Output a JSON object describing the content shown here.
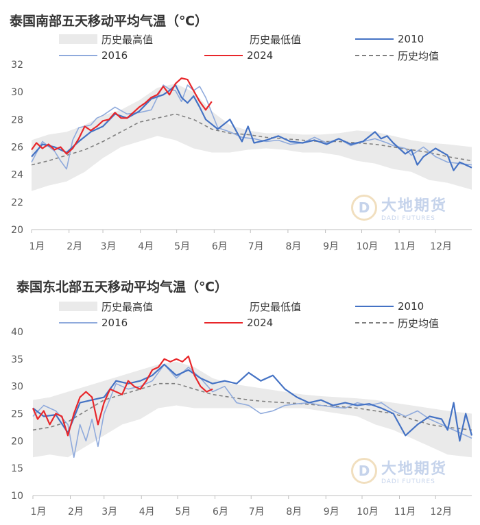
{
  "chart_data": [
    {
      "type": "line",
      "title": "泰国南部五天移动平均气温（℃）",
      "x_categories": [
        "1月",
        "2月",
        "3月",
        "4月",
        "5月",
        "6月",
        "7月",
        "8月",
        "9月",
        "10月",
        "11月",
        "12月"
      ],
      "ylim": [
        20,
        32
      ],
      "yticks": [
        20,
        22,
        24,
        26,
        28,
        30,
        32
      ],
      "grid": false,
      "legend": [
        "历史最高值",
        "历史最低值",
        "2010",
        "2016",
        "2024",
        "历史均值"
      ],
      "x_unit": "day of year",
      "series": [
        {
          "name": "历史最高值",
          "x": [
            1,
            15,
            30,
            45,
            60,
            75,
            90,
            105,
            120,
            135,
            150,
            165,
            180,
            195,
            210,
            225,
            240,
            255,
            270,
            285,
            300,
            315,
            330,
            345,
            365
          ],
          "values": [
            26.5,
            26.9,
            27.1,
            27.6,
            28.3,
            28.7,
            29.4,
            30.3,
            30.6,
            30.0,
            28.6,
            27.6,
            27.2,
            27.0,
            27.0,
            26.9,
            26.9,
            27.0,
            27.2,
            27.1,
            26.8,
            26.5,
            26.3,
            26.2,
            26.0
          ]
        },
        {
          "name": "历史最低值",
          "x": [
            1,
            15,
            30,
            45,
            60,
            75,
            90,
            105,
            120,
            135,
            150,
            165,
            180,
            195,
            210,
            225,
            240,
            255,
            270,
            285,
            300,
            315,
            330,
            345,
            365
          ],
          "values": [
            22.8,
            23.2,
            23.5,
            24.2,
            25.2,
            26.0,
            26.4,
            26.8,
            26.5,
            25.9,
            25.6,
            25.6,
            25.8,
            25.9,
            25.8,
            25.6,
            25.6,
            25.4,
            25.0,
            24.8,
            24.4,
            24.2,
            23.6,
            23.4,
            22.9
          ]
        },
        {
          "name": "历史均值",
          "x": [
            1,
            15,
            30,
            45,
            60,
            75,
            90,
            105,
            120,
            135,
            150,
            165,
            180,
            195,
            210,
            225,
            240,
            255,
            270,
            285,
            300,
            315,
            330,
            345,
            365
          ],
          "values": [
            24.7,
            25.0,
            25.4,
            25.8,
            26.4,
            27.1,
            27.8,
            28.1,
            28.4,
            28.0,
            27.3,
            27.0,
            26.9,
            26.7,
            26.6,
            26.5,
            26.4,
            26.4,
            26.3,
            26.2,
            26.0,
            25.8,
            25.6,
            25.3,
            25.0
          ]
        },
        {
          "name": "2010",
          "x": [
            1,
            10,
            20,
            30,
            40,
            50,
            60,
            70,
            80,
            90,
            100,
            110,
            115,
            120,
            125,
            130,
            135,
            140,
            145,
            155,
            165,
            175,
            180,
            185,
            195,
            205,
            215,
            225,
            235,
            245,
            255,
            265,
            275,
            285,
            290,
            295,
            300,
            310,
            315,
            320,
            325,
            335,
            345,
            350,
            355,
            360,
            365
          ],
          "values": [
            25.3,
            26.2,
            26.0,
            25.6,
            26.4,
            27.1,
            27.5,
            28.4,
            28.1,
            28.6,
            29.5,
            29.8,
            30.1,
            30.5,
            29.6,
            29.2,
            29.7,
            28.9,
            28.0,
            27.3,
            28.0,
            26.4,
            27.5,
            26.3,
            26.5,
            26.8,
            26.4,
            26.3,
            26.5,
            26.2,
            26.6,
            26.2,
            26.4,
            27.1,
            26.6,
            26.8,
            26.3,
            25.5,
            25.8,
            24.7,
            25.3,
            25.9,
            25.4,
            24.3,
            24.9,
            24.7,
            24.5
          ]
        },
        {
          "name": "2016",
          "x": [
            1,
            10,
            20,
            25,
            30,
            35,
            40,
            50,
            55,
            60,
            70,
            80,
            90,
            100,
            110,
            115,
            120,
            125,
            130,
            135,
            140,
            145,
            155,
            165,
            175,
            185,
            195,
            205,
            215,
            225,
            235,
            245,
            255,
            265,
            275,
            285,
            295,
            300,
            310,
            315,
            325,
            335,
            345,
            355,
            365
          ],
          "values": [
            24.9,
            26.4,
            25.7,
            25.0,
            24.4,
            26.5,
            27.4,
            27.6,
            28.1,
            28.3,
            28.9,
            28.4,
            28.5,
            28.7,
            30.5,
            30.2,
            30.1,
            29.3,
            30.5,
            30.1,
            30.4,
            29.6,
            27.4,
            27.1,
            26.7,
            26.6,
            26.4,
            26.5,
            26.2,
            26.3,
            26.7,
            26.3,
            26.6,
            26.1,
            26.4,
            26.6,
            26.3,
            26.1,
            25.9,
            25.4,
            26.0,
            25.3,
            24.9,
            24.8,
            24.7
          ]
        },
        {
          "name": "2024",
          "x": [
            1,
            5,
            10,
            15,
            20,
            25,
            30,
            35,
            40,
            45,
            50,
            55,
            60,
            65,
            70,
            75,
            80,
            85,
            90,
            95,
            100,
            105,
            110,
            115,
            120,
            125,
            130,
            135,
            140,
            145,
            150
          ],
          "values": [
            25.8,
            26.3,
            25.9,
            26.2,
            25.8,
            26.0,
            25.5,
            25.9,
            26.6,
            27.5,
            27.2,
            27.5,
            27.9,
            28.0,
            28.5,
            28.1,
            28.1,
            28.5,
            28.9,
            29.2,
            29.6,
            29.8,
            30.4,
            29.8,
            30.6,
            31.0,
            30.9,
            30.1,
            29.3,
            28.7,
            29.3
          ]
        }
      ]
    },
    {
      "type": "line",
      "title": "泰国东北部五天移动平均气温（℃）",
      "x_categories": [
        "1月",
        "2月",
        "3月",
        "4月",
        "5月",
        "6月",
        "7月",
        "8月",
        "9月",
        "10月",
        "11月",
        "12月"
      ],
      "ylim": [
        10,
        40
      ],
      "yticks": [
        10,
        15,
        20,
        25,
        30,
        35,
        40
      ],
      "grid": false,
      "legend": [
        "历史最高值",
        "历史最低值",
        "2010",
        "2016",
        "2024",
        "历史均值"
      ],
      "x_unit": "day of year",
      "series": [
        {
          "name": "历史最高值",
          "x": [
            1,
            15,
            30,
            45,
            60,
            75,
            90,
            105,
            120,
            135,
            150,
            165,
            180,
            195,
            210,
            225,
            240,
            255,
            270,
            285,
            300,
            315,
            330,
            345,
            365
          ],
          "values": [
            27.5,
            28.0,
            29.0,
            30.0,
            31.0,
            32.0,
            33.0,
            34.0,
            34.5,
            33.5,
            31.5,
            30.5,
            30.0,
            29.5,
            29.0,
            28.5,
            28.2,
            28.0,
            27.8,
            27.5,
            27.0,
            26.5,
            26.0,
            25.5,
            25.0
          ]
        },
        {
          "name": "历史最低值",
          "x": [
            1,
            15,
            30,
            45,
            60,
            75,
            90,
            105,
            120,
            135,
            150,
            165,
            180,
            195,
            210,
            225,
            240,
            255,
            270,
            285,
            300,
            315,
            330,
            345,
            365
          ],
          "values": [
            17.0,
            17.5,
            17.0,
            19.0,
            21.0,
            23.0,
            24.0,
            26.0,
            26.5,
            26.0,
            26.0,
            26.0,
            26.0,
            26.0,
            26.0,
            26.0,
            25.5,
            25.0,
            24.5,
            23.0,
            22.0,
            20.5,
            19.0,
            17.5,
            17.0
          ]
        },
        {
          "name": "历史均值",
          "x": [
            1,
            15,
            30,
            45,
            60,
            75,
            90,
            105,
            120,
            135,
            150,
            165,
            180,
            195,
            210,
            225,
            240,
            255,
            270,
            285,
            300,
            315,
            330,
            345,
            365
          ],
          "values": [
            22.0,
            22.5,
            23.5,
            25.5,
            27.5,
            28.5,
            29.5,
            30.5,
            30.5,
            29.5,
            28.5,
            28.0,
            27.5,
            27.2,
            27.0,
            26.8,
            26.5,
            26.3,
            26.0,
            25.5,
            25.0,
            24.0,
            23.0,
            22.5,
            22.0
          ]
        },
        {
          "name": "2010",
          "x": [
            1,
            10,
            20,
            30,
            40,
            50,
            60,
            70,
            80,
            90,
            100,
            110,
            120,
            130,
            140,
            150,
            160,
            170,
            180,
            190,
            200,
            210,
            220,
            230,
            240,
            250,
            260,
            270,
            280,
            290,
            300,
            310,
            320,
            330,
            340,
            345,
            350,
            355,
            360,
            365
          ],
          "values": [
            26.0,
            24.5,
            24.8,
            21.5,
            27.0,
            27.5,
            28.0,
            31.0,
            30.5,
            31.0,
            32.0,
            34.0,
            32.0,
            33.0,
            31.5,
            30.5,
            31.0,
            30.5,
            32.5,
            31.0,
            32.0,
            29.5,
            28.0,
            27.0,
            27.5,
            26.5,
            27.0,
            26.5,
            26.8,
            26.0,
            25.0,
            21.0,
            23.0,
            24.5,
            24.0,
            22.0,
            27.0,
            20.0,
            25.0,
            21.0
          ]
        },
        {
          "name": "2016",
          "x": [
            1,
            10,
            20,
            30,
            35,
            40,
            45,
            50,
            55,
            60,
            70,
            80,
            90,
            100,
            110,
            120,
            130,
            140,
            150,
            160,
            170,
            180,
            190,
            200,
            210,
            220,
            230,
            240,
            250,
            260,
            270,
            280,
            290,
            300,
            310,
            320,
            330,
            340,
            350,
            360,
            365
          ],
          "values": [
            24.5,
            26.5,
            25.5,
            23.0,
            17.0,
            23.0,
            20.0,
            24.0,
            19.0,
            25.0,
            30.5,
            29.5,
            30.0,
            31.0,
            34.0,
            31.5,
            33.5,
            31.5,
            29.0,
            30.0,
            27.0,
            26.5,
            25.0,
            25.5,
            26.5,
            26.8,
            27.0,
            26.5,
            26.2,
            26.0,
            27.0,
            26.5,
            27.0,
            25.5,
            24.5,
            25.5,
            24.0,
            23.0,
            22.0,
            21.0,
            20.5
          ]
        },
        {
          "name": "2024",
          "x": [
            1,
            5,
            10,
            15,
            20,
            25,
            30,
            35,
            40,
            45,
            50,
            55,
            60,
            65,
            70,
            75,
            80,
            85,
            90,
            95,
            100,
            105,
            110,
            115,
            120,
            125,
            130,
            135,
            140,
            145,
            150
          ],
          "values": [
            26.0,
            24.0,
            25.5,
            23.0,
            25.0,
            24.5,
            21.0,
            25.0,
            28.0,
            29.0,
            28.0,
            23.0,
            27.0,
            29.5,
            29.0,
            28.5,
            31.0,
            30.0,
            29.5,
            31.0,
            33.0,
            33.5,
            35.0,
            34.5,
            35.0,
            34.5,
            35.5,
            32.0,
            30.0,
            29.0,
            29.5
          ]
        }
      ]
    }
  ],
  "styles": {
    "band_color": "#eaeaea",
    "color_2010": "#4472c4",
    "color_2016": "#8faadc",
    "color_2024": "#e8262a",
    "color_mean": "#7f7f7f"
  },
  "watermark": {
    "cn": "大地期货",
    "en": "DADI FUTURES"
  }
}
